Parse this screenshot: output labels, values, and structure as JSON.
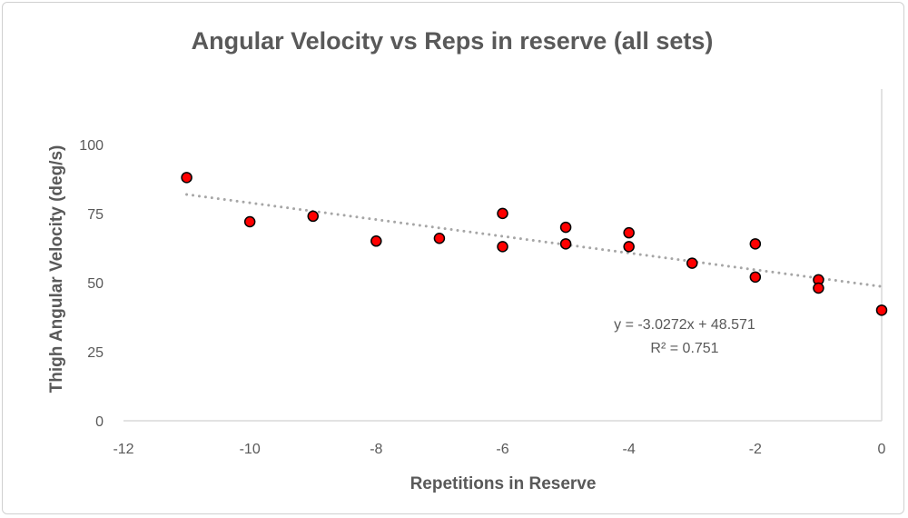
{
  "chart_data": {
    "type": "scatter",
    "title": "Angular Velocity vs Reps in reserve (all sets)",
    "xlabel": "Repetitions in Reserve",
    "ylabel": "Thigh Angular Velocity (deg/s)",
    "xlim": [
      -12,
      0
    ],
    "ylim": [
      0,
      120
    ],
    "xticks": [
      -12,
      -10,
      -8,
      -6,
      -4,
      -2,
      0
    ],
    "yticks": [
      0,
      25,
      50,
      75,
      100
    ],
    "grid": false,
    "points": [
      {
        "x": -11,
        "y": 88
      },
      {
        "x": -10,
        "y": 72
      },
      {
        "x": -9,
        "y": 74
      },
      {
        "x": -8,
        "y": 65
      },
      {
        "x": -7,
        "y": 66
      },
      {
        "x": -6,
        "y": 75
      },
      {
        "x": -6,
        "y": 63
      },
      {
        "x": -5,
        "y": 70
      },
      {
        "x": -5,
        "y": 64
      },
      {
        "x": -4,
        "y": 68
      },
      {
        "x": -4,
        "y": 63
      },
      {
        "x": -3,
        "y": 57
      },
      {
        "x": -2,
        "y": 64
      },
      {
        "x": -2,
        "y": 52
      },
      {
        "x": -1,
        "y": 51
      },
      {
        "x": -1,
        "y": 48
      },
      {
        "x": 0,
        "y": 40
      }
    ],
    "trendline": {
      "type": "linear",
      "slope": -3.0272,
      "intercept": 48.571,
      "x_range": [
        -11,
        0
      ]
    },
    "equation_label": "y = -3.0272x + 48.571",
    "r2_label": "R² = 0.751",
    "colors": {
      "marker": "#ff0000",
      "marker_edge": "#000000",
      "trendline": "#a6a6a6",
      "axis": "#d9d9d9"
    }
  }
}
